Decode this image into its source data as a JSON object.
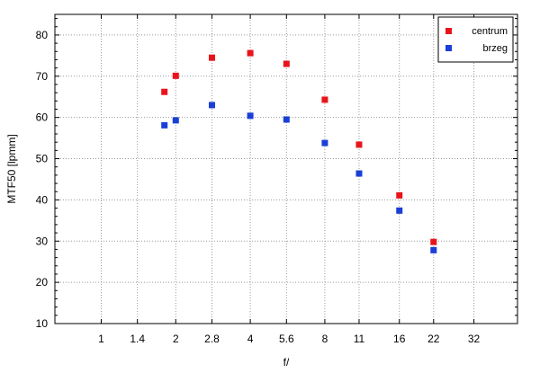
{
  "chart_data": {
    "type": "scatter",
    "xlabel": "f/",
    "ylabel": "MTF50 [lpmm]",
    "x_scale": "log2",
    "xticks": [
      1,
      1.4,
      2,
      2.8,
      4,
      5.6,
      8,
      11,
      16,
      22,
      32
    ],
    "xtick_labels": [
      "1",
      "1.4",
      "2",
      "2.8",
      "4",
      "5.6",
      "8",
      "11",
      "16",
      "22",
      "32"
    ],
    "xlim": [
      0.65,
      48
    ],
    "ylim": [
      10,
      85
    ],
    "yticks": [
      10,
      20,
      30,
      40,
      50,
      60,
      70,
      80
    ],
    "grid": true,
    "legend_position": "top-right",
    "series": [
      {
        "name": "centrum",
        "color": "#e8141c",
        "x": [
          1.8,
          2,
          2.8,
          4,
          5.6,
          8,
          11,
          16,
          22
        ],
        "y": [
          66.2,
          70.1,
          74.5,
          75.6,
          73.0,
          64.3,
          53.4,
          41.1,
          29.8
        ]
      },
      {
        "name": "brzeg",
        "color": "#1a3fd6",
        "x": [
          1.8,
          2,
          2.8,
          4,
          5.6,
          8,
          11,
          16,
          22
        ],
        "y": [
          58.1,
          59.3,
          63.0,
          60.4,
          59.5,
          53.8,
          46.4,
          37.4,
          27.8
        ]
      }
    ]
  }
}
